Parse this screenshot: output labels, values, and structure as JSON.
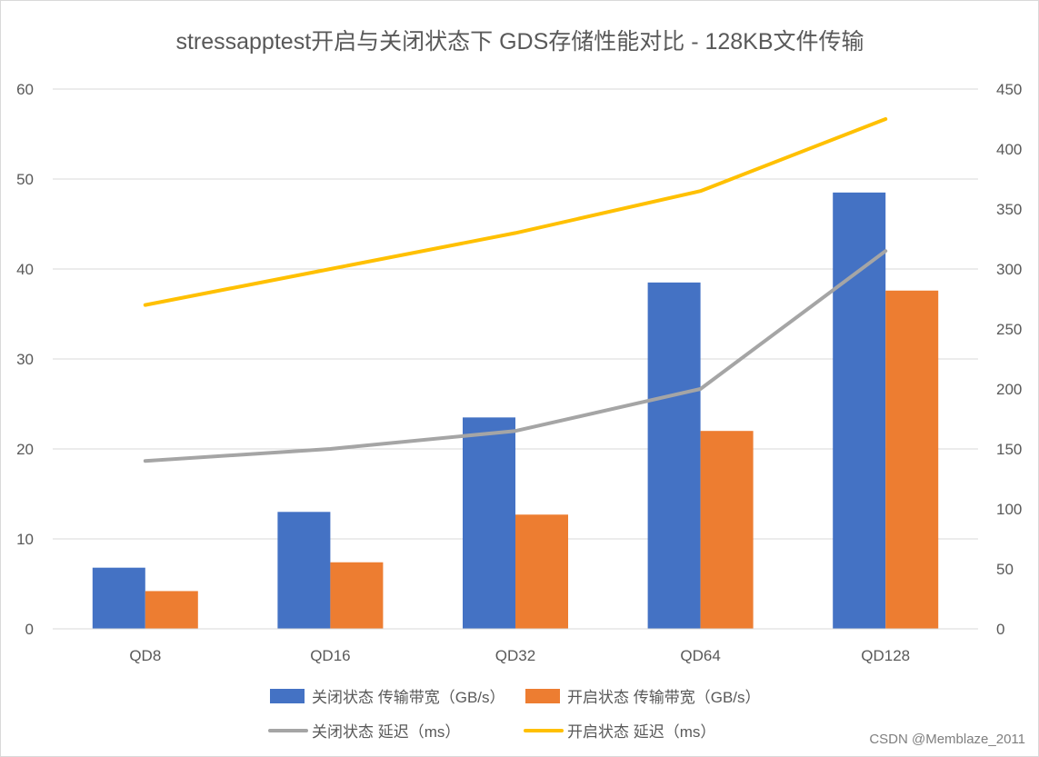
{
  "chart_data": {
    "type": "bar+line",
    "title": "stressapptest开启与关闭状态下 GDS存储性能对比 - 128KB文件传输",
    "categories": [
      "QD8",
      "QD16",
      "QD32",
      "QD64",
      "QD128"
    ],
    "y_left": {
      "min": 0,
      "max": 60,
      "step": 10,
      "ticks": [
        "0",
        "10",
        "20",
        "30",
        "40",
        "50",
        "60"
      ]
    },
    "y_right": {
      "min": 0,
      "max": 450,
      "step": 50,
      "ticks": [
        "0",
        "50",
        "100",
        "150",
        "200",
        "250",
        "300",
        "350",
        "400",
        "450"
      ]
    },
    "bar_series": [
      {
        "name": "关闭状态 传输带宽（GB/s）",
        "color": "#4472c4",
        "values": [
          6.8,
          13.0,
          23.5,
          38.5,
          48.5
        ]
      },
      {
        "name": "开启状态 传输带宽（GB/s）",
        "color": "#ed7d31",
        "values": [
          4.2,
          7.4,
          12.7,
          22.0,
          37.6
        ]
      }
    ],
    "line_series": [
      {
        "name": "关闭状态 延迟（ms）",
        "color": "#a5a5a5",
        "axis": "right",
        "values": [
          140,
          150,
          165,
          200,
          315
        ]
      },
      {
        "name": "开启状态 延迟（ms）",
        "color": "#ffc000",
        "axis": "right",
        "values": [
          270,
          300,
          330,
          365,
          425
        ]
      }
    ],
    "legend_position": "bottom",
    "grid": true
  },
  "watermark": "CSDN @Memblaze_2011"
}
